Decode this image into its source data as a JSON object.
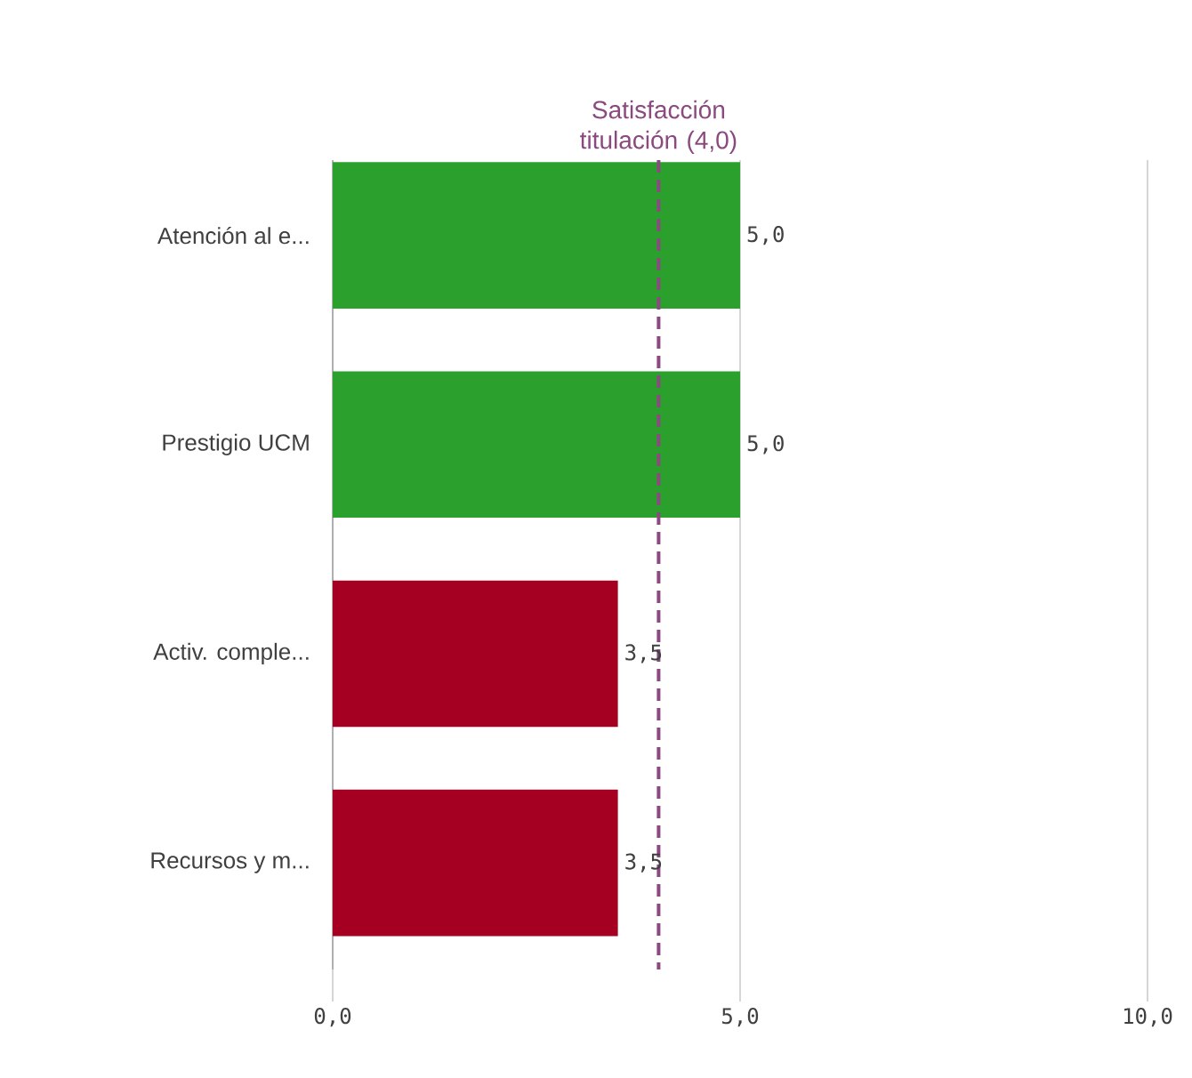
{
  "chart_data": {
    "type": "bar",
    "orientation": "horizontal",
    "categories": [
      "Atención al e...",
      "Prestigio UCM",
      "Activ. comple...",
      "Recursos y m..."
    ],
    "values": [
      5.0,
      5.0,
      3.5,
      3.5
    ],
    "colors": [
      "#2ca02c",
      "#2ca02c",
      "#a50021",
      "#a50021"
    ],
    "value_labels": [
      "5,0",
      "5,0",
      "3,5",
      "3,5"
    ],
    "xlim": [
      0,
      10
    ],
    "xticks": [
      {
        "value": 0,
        "label": "0,0"
      },
      {
        "value": 5,
        "label": "5,0"
      },
      {
        "value": 10,
        "label": "10,0"
      }
    ],
    "grid": "x",
    "ref_lines": [
      {
        "axis": "x",
        "value": 4,
        "label": "Satisfacción titulación (4,0)",
        "color": "#8b4a7f",
        "line_style": "dashed"
      }
    ]
  }
}
